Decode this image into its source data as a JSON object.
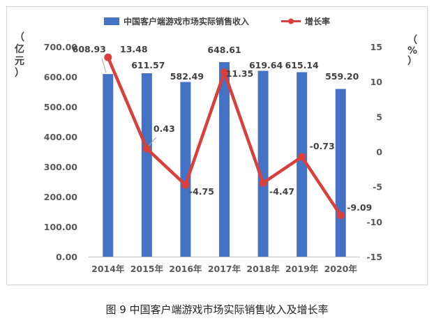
{
  "caption": "图 9  中国客户端游戏市场实际销售收入及增长率",
  "chart_data": {
    "type": "bar",
    "categories": [
      "2014年",
      "2015年",
      "2016年",
      "2017年",
      "2018年",
      "2019年",
      "2020年"
    ],
    "series": [
      {
        "name": "中国客户端游戏市场实际销售收入",
        "type": "bar",
        "axis": "left",
        "color": "#4472C4",
        "values": [
          608.93,
          611.57,
          582.49,
          648.61,
          619.64,
          615.14,
          559.2
        ],
        "labels": [
          "608.93",
          "611.57",
          "582.49",
          "648.61",
          "619.64",
          "615.14",
          "559.20"
        ]
      },
      {
        "name": "增长率",
        "type": "line",
        "axis": "right",
        "color": "#D9403B",
        "values": [
          13.48,
          0.43,
          -4.75,
          11.35,
          -4.47,
          -0.73,
          -9.09
        ],
        "labels": [
          "13.48",
          "0.43",
          "-4.75",
          "11.35",
          "-4.47",
          "-0.73",
          "-9.09"
        ]
      }
    ],
    "y_left": {
      "label": "亿元",
      "min": 0,
      "max": 700,
      "ticks": [
        0,
        100,
        200,
        300,
        400,
        500,
        600,
        700
      ],
      "tick_labels": [
        "0.00",
        "100.00",
        "200.00",
        "300.00",
        "400.00",
        "500.00",
        "600.00",
        "700.00"
      ]
    },
    "y_right": {
      "label": "%",
      "min": -15,
      "max": 15,
      "ticks": [
        -15,
        -10,
        -5,
        0,
        5,
        10,
        15
      ],
      "tick_labels": [
        "-15",
        "-10",
        "-5",
        "0",
        "5",
        "10",
        "15"
      ]
    },
    "legend_position": "top",
    "grid": false
  }
}
